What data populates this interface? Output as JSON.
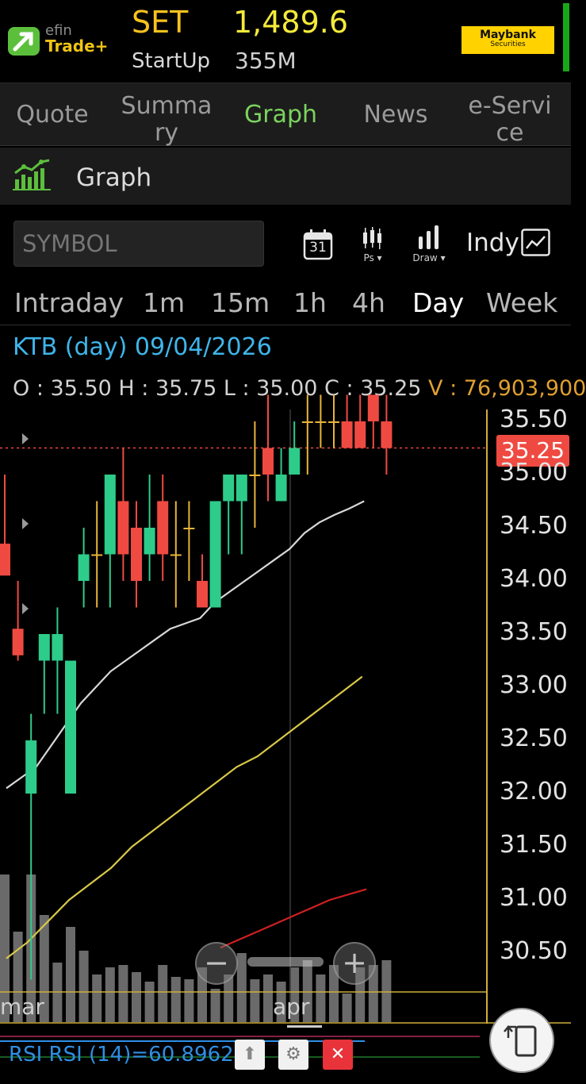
{
  "header": {
    "logo_small": "efin",
    "logo_main": "Trade+",
    "index_name": "SET",
    "index_value": "1,489.6",
    "sub_name": "StartUp",
    "sub_value": "355M",
    "broker_name": "Maybank",
    "broker_sub": "Securities"
  },
  "tabs": [
    {
      "label": "Quote",
      "active": false
    },
    {
      "label": "Summary",
      "active": false
    },
    {
      "label": "Graph",
      "active": true
    },
    {
      "label": "News",
      "active": false
    },
    {
      "label": "e-Service",
      "active": false
    }
  ],
  "titlebar": {
    "title": "Graph",
    "icon": "graph-icon"
  },
  "toolbar": {
    "symbol_placeholder": "SYMBOL",
    "calendar_day": "31",
    "ps_label": "Ps",
    "draw_label": "Draw",
    "indy_label": "Indy"
  },
  "periods": [
    {
      "label": "Intraday",
      "active": false
    },
    {
      "label": "1m",
      "active": false
    },
    {
      "label": "15m",
      "active": false
    },
    {
      "label": "1h",
      "active": false
    },
    {
      "label": "4h",
      "active": false
    },
    {
      "label": "Day",
      "active": true
    },
    {
      "label": "Week",
      "active": false
    }
  ],
  "info": {
    "title": "KTB (day) 09/04/2026",
    "ohlc": "O : 35.50 H : 35.75 L : 35.00 C : 35.25",
    "volume": "V : 76,903,900"
  },
  "current_price": "35.25",
  "months": [
    "mar",
    "apr"
  ],
  "rsi": {
    "label": "RSI RSI (14)=60.8962",
    "value": 60.8962
  },
  "colors": {
    "up": "#2ecc8a",
    "down": "#ef4a42",
    "doji": "#e8b43a",
    "ma_fast": "#d8d8d8",
    "ma_mid": "#d8c84a",
    "ma_slow": "#d02020",
    "accent_green": "#7bd35f",
    "accent_blue": "#3fb5ea"
  },
  "chart_data": {
    "type": "candlestick",
    "title": "KTB (day) 09/04/2026",
    "ylim": [
      30.25,
      35.6
    ],
    "y_ticks": [
      35.5,
      35.0,
      34.5,
      34.0,
      33.5,
      33.0,
      32.5,
      32.0,
      31.5,
      31.0,
      30.5
    ],
    "x_labels": [
      "mar",
      "apr"
    ],
    "candles": [
      {
        "o": 34.35,
        "h": 35.0,
        "l": 34.1,
        "c": 34.05
      },
      {
        "o": 33.55,
        "h": 34.0,
        "l": 33.25,
        "c": 33.3
      },
      {
        "o": 32.0,
        "h": 32.75,
        "l": 30.25,
        "c": 32.5
      },
      {
        "o": 33.25,
        "h": 33.5,
        "l": 32.75,
        "c": 33.5
      },
      {
        "o": 33.25,
        "h": 33.75,
        "l": 32.75,
        "c": 33.5
      },
      {
        "o": 32.0,
        "h": 33.25,
        "l": 32.0,
        "c": 33.25
      },
      {
        "o": 34.0,
        "h": 34.5,
        "l": 33.75,
        "c": 34.25
      },
      {
        "o": 34.25,
        "h": 34.75,
        "l": 33.75,
        "c": 34.25
      },
      {
        "o": 34.25,
        "h": 35.0,
        "l": 33.75,
        "c": 35.0
      },
      {
        "o": 34.75,
        "h": 35.25,
        "l": 34.0,
        "c": 34.25
      },
      {
        "o": 34.5,
        "h": 34.75,
        "l": 33.75,
        "c": 34.0
      },
      {
        "o": 34.25,
        "h": 35.0,
        "l": 34.0,
        "c": 34.5
      },
      {
        "o": 34.75,
        "h": 35.0,
        "l": 34.0,
        "c": 34.25
      },
      {
        "o": 34.25,
        "h": 34.75,
        "l": 33.75,
        "c": 34.25
      },
      {
        "o": 34.5,
        "h": 34.75,
        "l": 34.0,
        "c": 34.5
      },
      {
        "o": 34.0,
        "h": 34.25,
        "l": 33.75,
        "c": 33.75
      },
      {
        "o": 33.75,
        "h": 34.75,
        "l": 33.75,
        "c": 34.75
      },
      {
        "o": 34.75,
        "h": 35.0,
        "l": 34.25,
        "c": 35.0
      },
      {
        "o": 34.75,
        "h": 35.0,
        "l": 34.25,
        "c": 35.0
      },
      {
        "o": 35.0,
        "h": 35.5,
        "l": 34.5,
        "c": 35.0
      },
      {
        "o": 35.25,
        "h": 35.75,
        "l": 34.75,
        "c": 35.0
      },
      {
        "o": 34.75,
        "h": 35.25,
        "l": 34.75,
        "c": 35.0
      },
      {
        "o": 35.0,
        "h": 35.5,
        "l": 35.0,
        "c": 35.25
      },
      {
        "o": 35.5,
        "h": 35.75,
        "l": 35.0,
        "c": 35.5
      },
      {
        "o": 35.5,
        "h": 35.75,
        "l": 35.25,
        "c": 35.5
      },
      {
        "o": 35.5,
        "h": 35.75,
        "l": 35.25,
        "c": 35.5
      },
      {
        "o": 35.5,
        "h": 35.75,
        "l": 35.25,
        "c": 35.25
      },
      {
        "o": 35.5,
        "h": 35.75,
        "l": 35.25,
        "c": 35.25
      },
      {
        "o": 35.75,
        "h": 35.75,
        "l": 35.25,
        "c": 35.5
      },
      {
        "o": 35.5,
        "h": 35.75,
        "l": 35.0,
        "c": 35.25
      }
    ],
    "volume_rel": [
      0.62,
      0.38,
      0.62,
      0.45,
      0.25,
      0.4,
      0.3,
      0.2,
      0.23,
      0.24,
      0.21,
      0.17,
      0.24,
      0.19,
      0.18,
      0.23,
      0.14,
      0.2,
      0.29,
      0.18,
      0.2,
      0.17,
      0.23,
      0.26,
      0.2,
      0.24,
      0.12,
      0.23,
      0.24,
      0.26
    ],
    "series": [
      {
        "values": [
          32.05,
          32.15,
          32.25,
          32.45,
          32.65,
          32.85,
          33.0,
          33.15,
          33.25,
          33.35,
          33.45,
          33.55,
          33.6,
          33.65,
          33.8,
          33.9,
          34.0,
          34.1,
          34.2,
          34.3,
          34.45,
          34.55,
          34.62,
          34.68,
          34.75
        ]
      },
      {
        "values": [
          30.45,
          30.6,
          30.8,
          31.0,
          31.15,
          31.3,
          31.5,
          31.65,
          31.8,
          31.95,
          32.1,
          32.25,
          32.35,
          32.5,
          32.65,
          32.8,
          32.95,
          33.1
        ]
      },
      {
        "values": [
          30.55,
          30.7,
          30.85,
          31.0,
          31.1
        ]
      }
    ]
  }
}
